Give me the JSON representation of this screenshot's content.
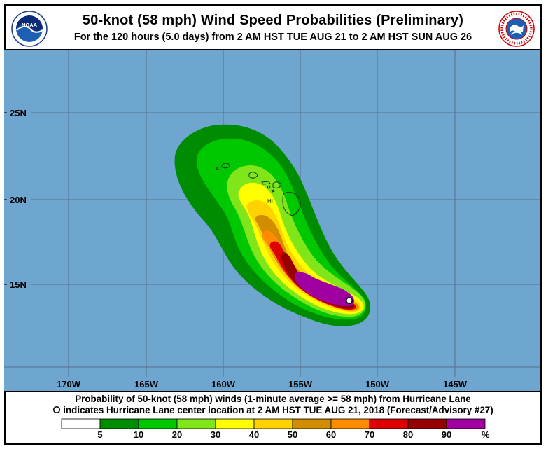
{
  "header": {
    "title": "50-knot (58 mph) Wind Speed Probabilities (Preliminary)",
    "subtitle": "For the 120 hours (5.0 days) from 2 AM HST TUE AUG 21 to 2 AM HST SUN AUG 26",
    "left_logo": {
      "icon": "noaa-logo",
      "text": "NOAA"
    },
    "right_logo": {
      "icon": "national-weather-service-logo",
      "text": "NATIONAL WEATHER SERVICE"
    }
  },
  "map": {
    "lat_labels": [
      "25N",
      "20N",
      "15N"
    ],
    "lon_labels": [
      "170W",
      "165W",
      "160W",
      "155W",
      "150W",
      "145W"
    ],
    "place_label": "HI",
    "colors": {
      "ocean": "#6fa6d0",
      "grid": "#556f8a"
    }
  },
  "caption": {
    "line1": "Probability of 50-knot (58 mph) winds (1-minute average >= 58 mph) from Hurricane Lane",
    "line2": "indicates Hurricane Lane center location at 2 AM HST TUE AUG 21, 2018 (Forecast/Advisory #27)"
  },
  "legend": {
    "ticks": [
      "5",
      "10",
      "20",
      "30",
      "40",
      "50",
      "60",
      "70",
      "80",
      "90"
    ],
    "unit": "%",
    "bins": [
      {
        "range": "<5",
        "color": "#ffffff"
      },
      {
        "range": "5-10",
        "color": "#008c00"
      },
      {
        "range": "10-20",
        "color": "#00c800"
      },
      {
        "range": "20-30",
        "color": "#80e61a"
      },
      {
        "range": "30-40",
        "color": "#ffff00"
      },
      {
        "range": "40-50",
        "color": "#ffd200"
      },
      {
        "range": "50-60",
        "color": "#d28c00"
      },
      {
        "range": "60-70",
        "color": "#ff8c00"
      },
      {
        "range": "70-80",
        "color": "#dc0000"
      },
      {
        "range": "80-90",
        "color": "#960000"
      },
      {
        "range": "90-100",
        "color": "#a000a0"
      }
    ]
  }
}
